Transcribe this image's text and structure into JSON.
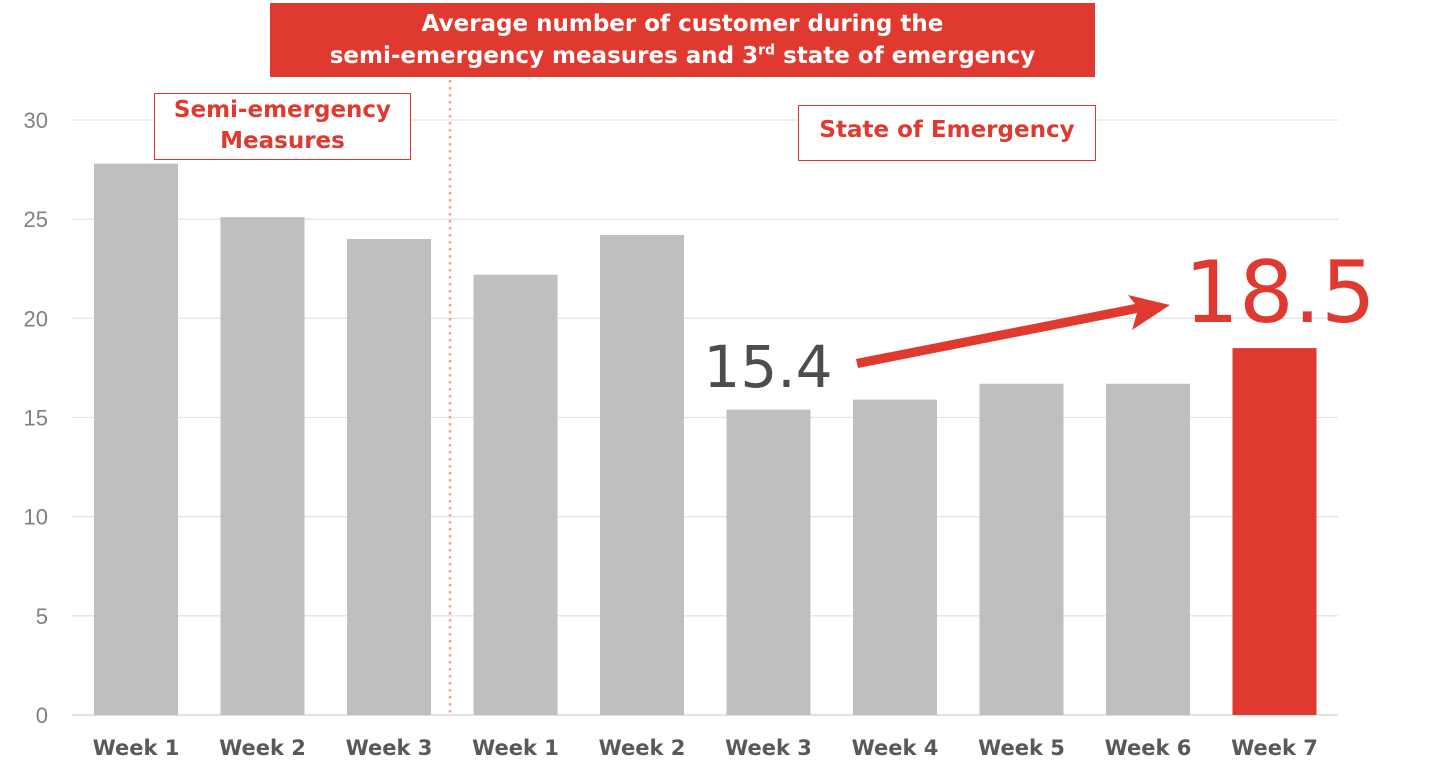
{
  "chart_data": {
    "type": "bar",
    "title_line1": "Average number of customer during the",
    "title_line2_pre": "semi-emergency measures and 3",
    "title_line2_sup": "rd",
    "title_line2_post": " state of emergency",
    "categories": [
      "Week 1",
      "Week 2",
      "Week 3",
      "Week 1",
      "Week 2",
      "Week 3",
      "Week 4",
      "Week 5",
      "Week 6",
      "Week 7"
    ],
    "values": [
      27.8,
      25.1,
      24.0,
      22.2,
      24.2,
      15.4,
      15.9,
      16.7,
      16.7,
      18.5
    ],
    "yticks": [
      "0",
      "5",
      "10",
      "15",
      "20",
      "25",
      "30"
    ],
    "ylim": [
      0,
      30
    ],
    "grid": true,
    "periods": [
      {
        "label_line1": "Semi-emergency",
        "label_line2": "Measures",
        "weeks": 3
      },
      {
        "label": "State of Emergency",
        "weeks": 7
      }
    ],
    "callouts": {
      "low": "15.4",
      "high": "18.5"
    },
    "colors": {
      "bar": "#bfbfbf",
      "highlight": "#e03a30",
      "grid": "#e4e4e4",
      "divider": "#f2a297"
    }
  }
}
